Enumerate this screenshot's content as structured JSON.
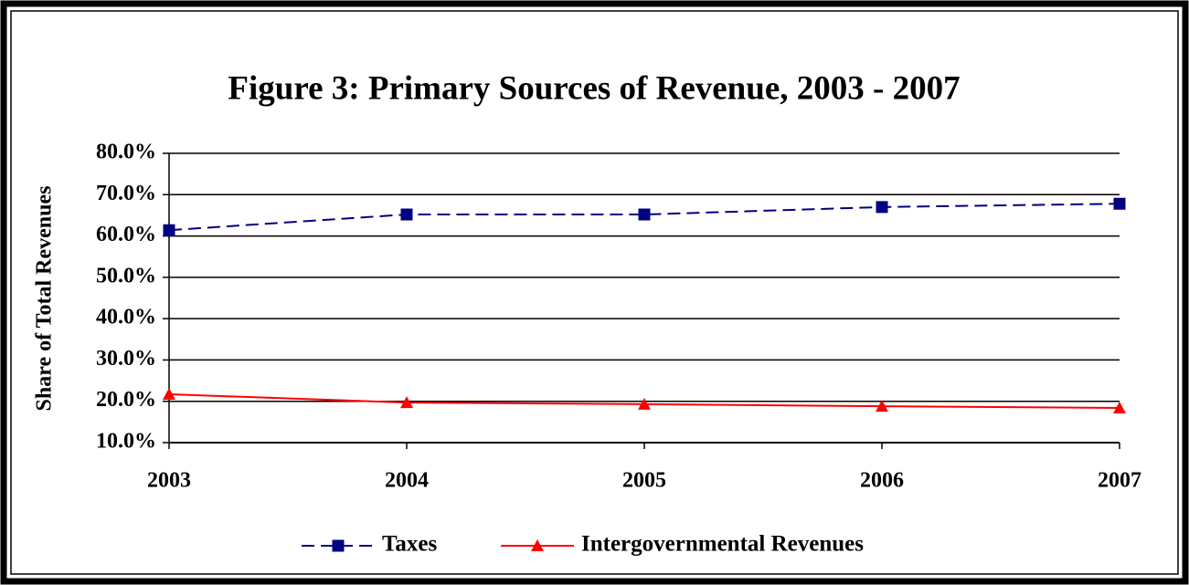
{
  "chart_data": {
    "type": "line",
    "title": "Figure 3:  Primary Sources of Revenue, 2003 - 2007",
    "y_label": "Share of Total Revenues",
    "categories": [
      "2003",
      "2004",
      "2005",
      "2006",
      "2007"
    ],
    "series": [
      {
        "name": "Taxes",
        "color": "#000080",
        "dashed": true,
        "marker": "square",
        "values": [
          61.4,
          65.2,
          65.2,
          67.0,
          67.8
        ]
      },
      {
        "name": "Intergovernmental Revenues",
        "color": "#ff0000",
        "dashed": false,
        "marker": "triangle",
        "values": [
          21.7,
          19.7,
          19.3,
          18.8,
          18.4
        ]
      }
    ],
    "ylim": [
      10,
      80
    ],
    "yticks": [
      {
        "value": 10,
        "label": "10.0%"
      },
      {
        "value": 20,
        "label": "20.0%"
      },
      {
        "value": 30,
        "label": "30.0%"
      },
      {
        "value": 40,
        "label": "40.0%"
      },
      {
        "value": 50,
        "label": "50.0%"
      },
      {
        "value": 60,
        "label": "60.0%"
      },
      {
        "value": 70,
        "label": "70.0%"
      },
      {
        "value": 80,
        "label": "80.0%"
      }
    ],
    "grid": true,
    "legend": "bottom"
  }
}
